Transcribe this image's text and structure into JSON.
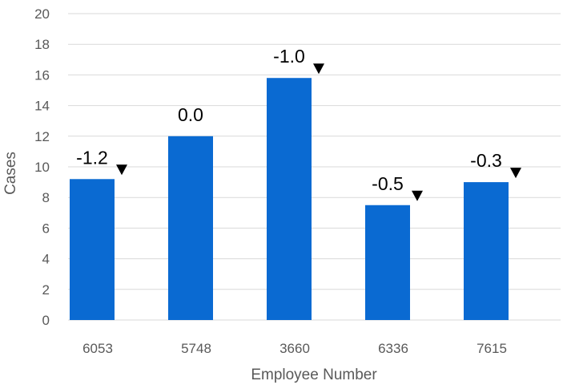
{
  "chart_data": {
    "type": "bar",
    "categories": [
      "6053",
      "5748",
      "3660",
      "6336",
      "7615"
    ],
    "values": [
      9.2,
      12.0,
      15.8,
      7.5,
      9.0
    ],
    "data_labels": [
      "-1.2",
      "0.0",
      "-1.0",
      "-0.5",
      "-0.3"
    ],
    "change_indicators": [
      "down",
      "none",
      "down",
      "down",
      "down"
    ],
    "xlabel": "Employee Number",
    "ylabel": "Cases",
    "ylim": [
      0,
      20
    ],
    "yticks": [
      0,
      2,
      4,
      6,
      8,
      10,
      12,
      14,
      16,
      18,
      20
    ],
    "grid": true,
    "bar_color": "#0A6AD2",
    "grid_color": "#D9D9D9",
    "indicator_color": "#000000"
  }
}
